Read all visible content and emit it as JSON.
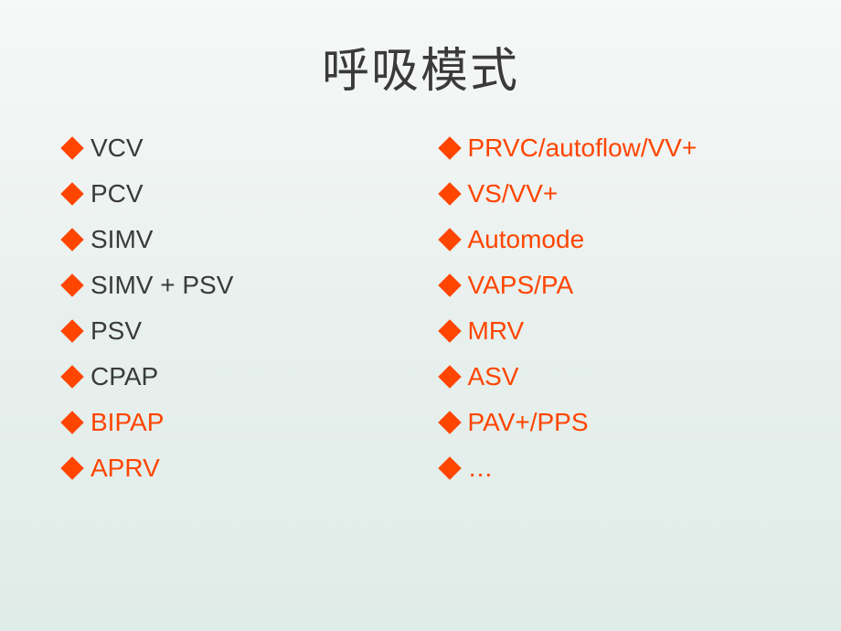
{
  "title": "呼吸模式",
  "title_fontsize": 52,
  "title_color": "#3a3a3a",
  "bullet_color": "#ff4500",
  "text_color": "#3a3a3a",
  "highlight_color": "#ff4500",
  "item_fontsize": 28,
  "background_gradient": [
    "#f7f8f8",
    "#e8f0ed",
    "#e0ece8"
  ],
  "leftColumn": [
    {
      "text": "VCV",
      "highlight": false
    },
    {
      "text": "PCV",
      "highlight": false
    },
    {
      "text": "SIMV",
      "highlight": false
    },
    {
      "text": "SIMV + PSV",
      "highlight": false
    },
    {
      "text": "PSV",
      "highlight": false
    },
    {
      "text": "CPAP",
      "highlight": false
    },
    {
      "text": "BIPAP",
      "highlight": true
    },
    {
      "text": "APRV",
      "highlight": true
    }
  ],
  "rightColumn": [
    {
      "text": "PRVC/autoflow/VV+",
      "highlight": true
    },
    {
      "text": "VS/VV+",
      "highlight": true
    },
    {
      "text": "Automode",
      "highlight": true
    },
    {
      "text": "VAPS/PA",
      "highlight": true
    },
    {
      "text": "MRV",
      "highlight": true
    },
    {
      "text": "ASV",
      "highlight": true
    },
    {
      "text": "PAV+/PPS",
      "highlight": true
    },
    {
      "text": "…",
      "highlight": true
    }
  ]
}
